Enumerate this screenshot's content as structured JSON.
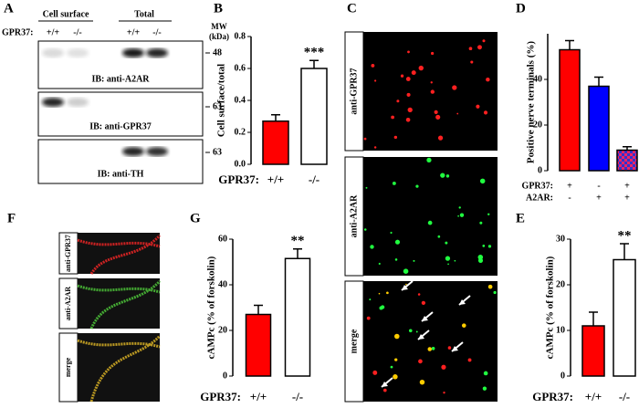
{
  "panels": {
    "letters": [
      "A",
      "B",
      "C",
      "D",
      "E",
      "F",
      "G"
    ]
  },
  "blot": {
    "header": [
      "Cell surface",
      "Total"
    ],
    "mw_label": [
      "MW",
      "(kDa)"
    ],
    "genotype_label": "GPR37:",
    "lanes": [
      "+/+",
      "-/-",
      "+/+",
      "-/-"
    ],
    "blots": [
      {
        "label": "IB: anti-A2AR",
        "mw": "48"
      },
      {
        "label": "IB: anti-GPR37",
        "mw": "63"
      },
      {
        "label": "IB: anti-TH",
        "mw": "63"
      }
    ]
  },
  "images_c": [
    "anti-GPR37",
    "anti-A2AR",
    "merge"
  ],
  "images_f": [
    "anti-GPR37",
    "anti-A2AR",
    "merge"
  ],
  "chart_data": [
    {
      "type": "bar",
      "y_label": "Cell surface/total",
      "x_label": "GPR37:",
      "categories": [
        "+/+",
        "-/-"
      ],
      "values": [
        0.27,
        0.6
      ],
      "errors": [
        0.04,
        0.05
      ],
      "colors": [
        "#ff0000",
        "#ffffff"
      ],
      "ylim": [
        0,
        0.8
      ],
      "yticks": [
        {
          "value": 0,
          "label": "0.0"
        },
        0.2,
        0.4,
        0.6,
        0.8
      ],
      "significance": [
        null,
        "***"
      ]
    },
    {
      "type": "bar",
      "y_label": "Positive nerve terminals (%)",
      "condition_rows": [
        {
          "name": "GPR37:",
          "values": [
            "+",
            "-",
            "+"
          ]
        },
        {
          "name": "A2AR:",
          "values": [
            "-",
            "+",
            "+"
          ]
        }
      ],
      "values": [
        53,
        37,
        9
      ],
      "errors": [
        4,
        4,
        1.5
      ],
      "colors": [
        "#ff0000",
        "#0000ff",
        "checker"
      ],
      "ylim": [
        0,
        60
      ],
      "yticks": [
        0,
        20,
        40
      ]
    },
    {
      "type": "bar",
      "y_label": "cAMPc (% of forskolin)",
      "x_label": "GPR37:",
      "categories": [
        "+/+",
        "-/-"
      ],
      "values": [
        11,
        25.5
      ],
      "errors": [
        3,
        3.5
      ],
      "colors": [
        "#ff0000",
        "#ffffff"
      ],
      "ylim": [
        0,
        30
      ],
      "yticks": [
        0,
        10,
        20,
        30
      ],
      "significance": [
        null,
        "**"
      ]
    },
    {
      "type": "bar",
      "y_label": "cAMPc (% of forskolin)",
      "x_label": "GPR37:",
      "categories": [
        "+/+",
        "-/-"
      ],
      "values": [
        27,
        51.5
      ],
      "errors": [
        4,
        4.2
      ],
      "colors": [
        "#ff0000",
        "#ffffff"
      ],
      "ylim": [
        0,
        60
      ],
      "yticks": [
        0,
        20,
        40,
        60
      ],
      "significance": [
        null,
        "**"
      ]
    }
  ]
}
